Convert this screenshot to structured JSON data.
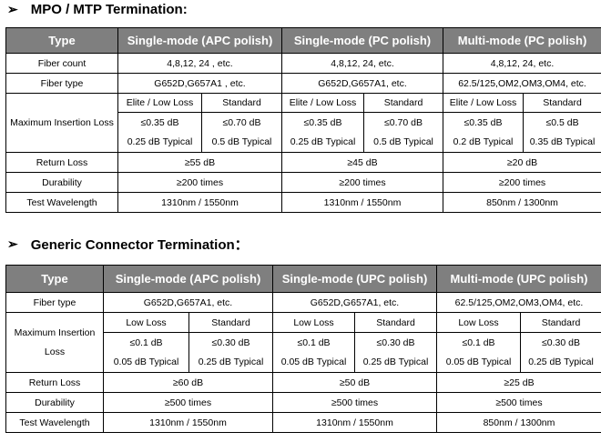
{
  "sections": [
    {
      "title": "MPO / MTP Termination:",
      "headers": [
        "Type",
        "Single-mode (APC polish)",
        "Single-mode (PC polish)",
        "Multi-mode (PC polish)"
      ],
      "fiber_count": {
        "label": "Fiber count",
        "values": [
          "4,8,12, 24 , etc.",
          "4,8,12, 24, etc.",
          "4,8,12, 24, etc."
        ]
      },
      "fiber_type": {
        "label": "Fiber type",
        "values": [
          "G652D,G657A1 , etc.",
          "G652D,G657A1, etc.",
          "62.5/125,OM2,OM3,OM4, etc."
        ]
      },
      "insertion_loss": {
        "label": "Maximum Insertion Loss",
        "sub_headers": [
          "Elite / Low Loss",
          "Standard",
          "Elite / Low Loss",
          "Standard",
          "Elite / Low Loss",
          "Standard"
        ],
        "max_values": [
          "≤0.35 dB",
          "≤0.70 dB",
          "≤0.35 dB",
          "≤0.70 dB",
          "≤0.35 dB",
          "≤0.5 dB"
        ],
        "typical_values": [
          "0.25 dB Typical",
          "0.5 dB Typical",
          "0.25 dB Typical",
          "0.5 dB Typical",
          "0.2 dB Typical",
          "0.35 dB Typical"
        ]
      },
      "return_loss": {
        "label": "Return Loss",
        "values": [
          "≥55 dB",
          "≥45 dB",
          "≥20 dB"
        ]
      },
      "durability": {
        "label": "Durability",
        "values": [
          "≥200 times",
          "≥200 times",
          "≥200 times"
        ]
      },
      "wavelength": {
        "label": "Test Wavelength",
        "values": [
          "1310nm / 1550nm",
          "1310nm / 1550nm",
          "850nm / 1300nm"
        ]
      }
    },
    {
      "title": "Generic Connector Termination：",
      "headers": [
        "Type",
        "Single-mode (APC polish)",
        "Single-mode (UPC polish)",
        "Multi-mode (UPC polish)"
      ],
      "fiber_type": {
        "label": "Fiber type",
        "values": [
          "G652D,G657A1, etc.",
          "G652D,G657A1, etc.",
          "62.5/125,OM2,OM3,OM4, etc."
        ]
      },
      "insertion_loss": {
        "label": "Maximum Insertion Loss",
        "sub_headers": [
          "Low Loss",
          "Standard",
          "Low Loss",
          "Standard",
          "Low Loss",
          "Standard"
        ],
        "max_values": [
          "≤0.1 dB",
          "≤0.30 dB",
          "≤0.1 dB",
          "≤0.30 dB",
          "≤0.1 dB",
          "≤0.30 dB"
        ],
        "typical_values": [
          "0.05 dB Typical",
          "0.25 dB Typical",
          "0.05 dB Typical",
          "0.25 dB Typical",
          "0.05 dB Typical",
          "0.25 dB Typical"
        ]
      },
      "return_loss": {
        "label": "Return Loss",
        "values": [
          "≥60 dB",
          "≥50 dB",
          "≥25 dB"
        ]
      },
      "durability": {
        "label": "Durability",
        "values": [
          "≥500 times",
          "≥500 times",
          "≥500 times"
        ]
      },
      "wavelength": {
        "label": "Test Wavelength",
        "values": [
          "1310nm / 1550nm",
          "1310nm / 1550nm",
          "850nm / 1300nm"
        ]
      }
    }
  ]
}
